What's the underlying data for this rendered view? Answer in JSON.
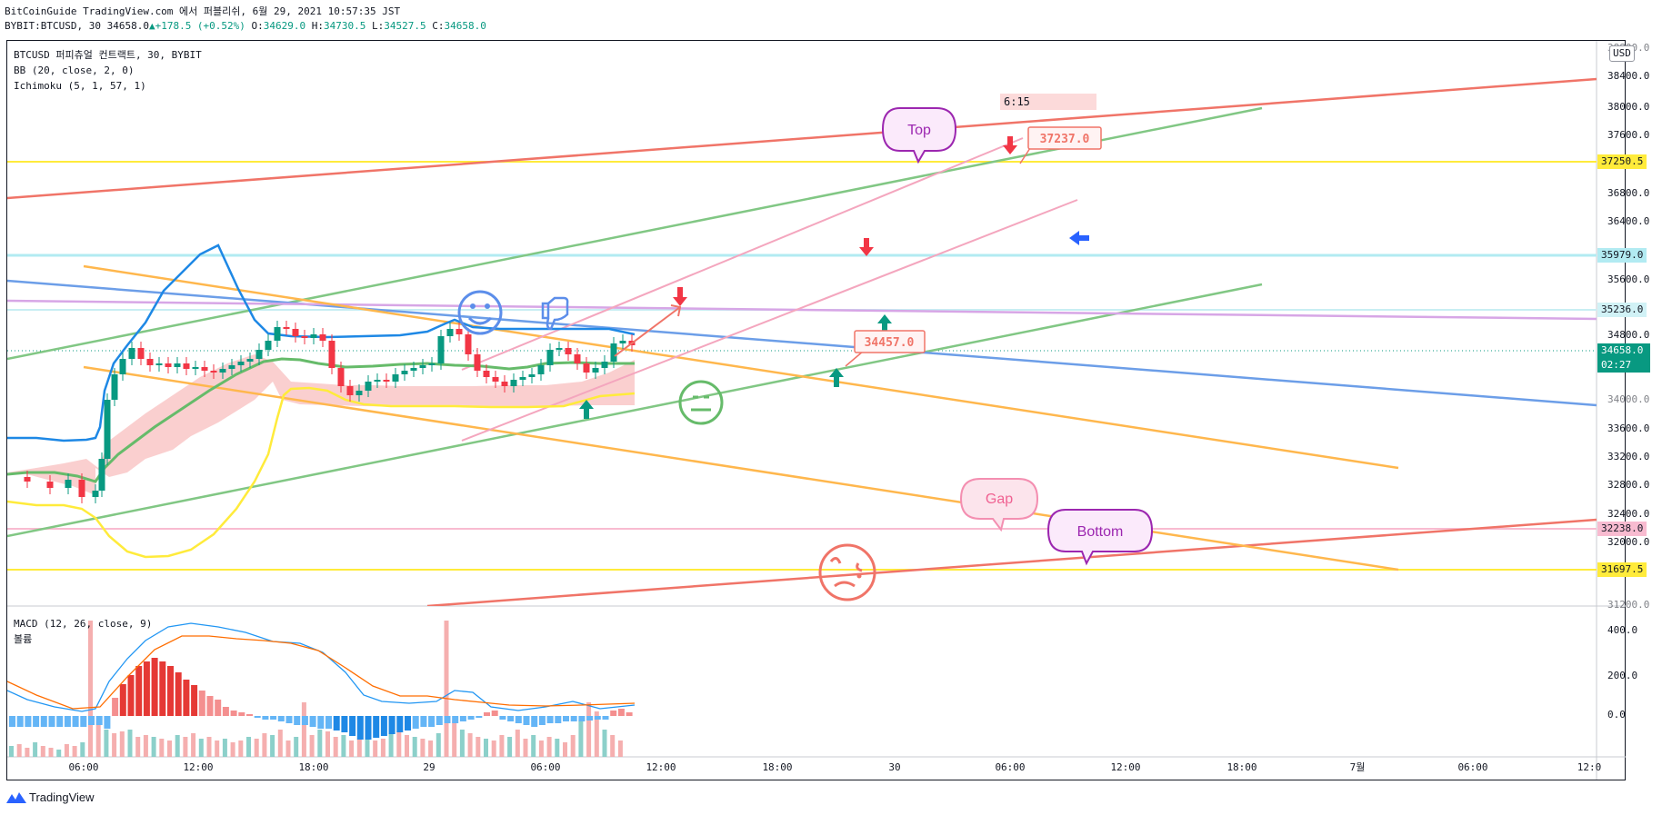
{
  "header": {
    "publish_line": "BitCoinGuide TradingView.com 에서 퍼블리쉬, 6월 29, 2021 10:57:35 JST",
    "symbol": "BYBIT:BTCUSD, 30 34658.0",
    "change": "+178.5 (+0.52%)",
    "ohlc": {
      "o_label": "O:",
      "o": "34629.0",
      "h_label": "H:",
      "h": "34730.5",
      "l_label": "L:",
      "l": "34527.5",
      "c_label": "C:",
      "c": "34658.0"
    }
  },
  "legend": {
    "title": "BTCUSD 퍼피츄얼 컨트랙트, 30, BYBIT",
    "bb": "BB (20, close, 2, 0)",
    "ichimoku": "Ichimoku (5, 1, 57, 1)",
    "macd": "MACD (12, 26, close, 9)",
    "volume": "볼륨"
  },
  "currency": "USD",
  "price_axis": [
    "38400.0",
    "38000.0",
    "37600.0",
    "36800.0",
    "36400.0",
    "35600.0",
    "34800.0",
    "33600.0",
    "33200.0",
    "32800.0",
    "32400.0",
    "32000.0"
  ],
  "price_axis_clipped": [
    "38800.0",
    "34000.0",
    "31200.0"
  ],
  "macd_axis": [
    "400.0",
    "200.0",
    "0.0"
  ],
  "time_axis": [
    "06:00",
    "12:00",
    "18:00",
    "29",
    "06:00",
    "12:00",
    "18:00",
    "30",
    "06:00",
    "12:00",
    "18:00",
    "7월",
    "06:00",
    "12:0"
  ],
  "price_labels": {
    "p1": {
      "text": "37250.5",
      "bg": "#ffeb3b"
    },
    "p2": {
      "text": "35979.0",
      "bg": "#b2ebf2"
    },
    "p3": {
      "text": "35236.0",
      "bg": "#d1f2f6"
    },
    "p4": {
      "text": "32238.0",
      "bg": "#f8bbd0"
    },
    "p5": {
      "text": "31697.5",
      "bg": "#ffeb3b"
    }
  },
  "current_price": {
    "price": "34658.0",
    "countdown": "02:27",
    "bg": "#089981"
  },
  "annotations": {
    "top_label": "Top",
    "bottom_label": "Bottom",
    "gap_label": "Gap",
    "time_tag": "6:15",
    "price_tag_1": "37237.0",
    "price_tag_2": "34457.0"
  },
  "brand": "TradingView",
  "colors": {
    "up": "#089981",
    "down": "#f23645",
    "bb": "#1e88e5",
    "cloud": "#f9c7c7",
    "lagging": "#ffeb3b",
    "base": "#4caf50"
  },
  "chart_data": {
    "type": "candlestick",
    "symbol": "BYBIT:BTCUSD",
    "interval": "30",
    "last": {
      "open": 34629.0,
      "high": 34730.5,
      "low": 34527.5,
      "close": 34658.0,
      "change": 178.5,
      "change_pct": 0.52
    },
    "ylim": [
      31000,
      39000
    ],
    "horizontal_levels": [
      37250.5,
      35979.0,
      35236.0,
      32238.0,
      31697.5
    ],
    "annotated_prices": [
      37237.0,
      34457.0
    ],
    "macd_axis_ticks": [
      400,
      200,
      0
    ]
  }
}
